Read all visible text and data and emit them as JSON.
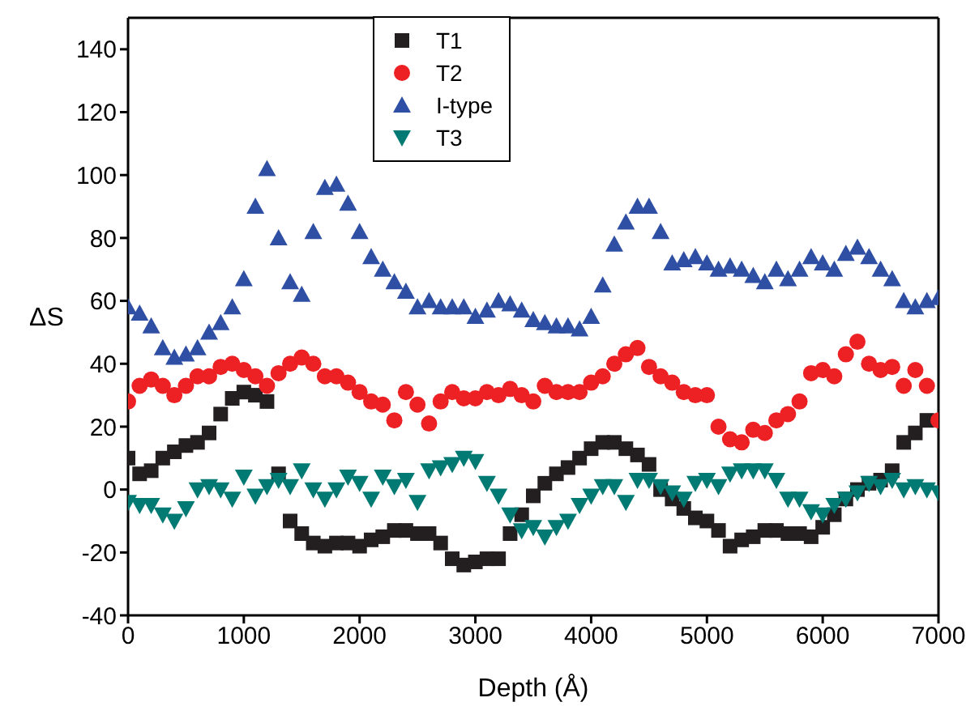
{
  "chart_data": {
    "type": "scatter",
    "xlabel": "Depth (Å)",
    "ylabel": "ΔS",
    "x": [
      0,
      100,
      200,
      300,
      400,
      500,
      600,
      700,
      800,
      900,
      1000,
      1100,
      1200,
      1300,
      1400,
      1500,
      1600,
      1700,
      1800,
      1900,
      2000,
      2100,
      2200,
      2300,
      2400,
      2500,
      2600,
      2700,
      2800,
      2900,
      3000,
      3100,
      3200,
      3300,
      3400,
      3500,
      3600,
      3700,
      3800,
      3900,
      4000,
      4100,
      4200,
      4300,
      4400,
      4500,
      4600,
      4700,
      4800,
      4900,
      5000,
      5100,
      5200,
      5300,
      5400,
      5500,
      5600,
      5700,
      5800,
      5900,
      6000,
      6100,
      6200,
      6300,
      6400,
      6500,
      6600,
      6700,
      6800,
      6900,
      7000
    ],
    "series": [
      {
        "name": "T1",
        "color": "#231f20",
        "marker": "square",
        "values": [
          10,
          5,
          6,
          10,
          12,
          14,
          15,
          18,
          24,
          29,
          31,
          30,
          28,
          5,
          -10,
          -14,
          -17,
          -18,
          -17,
          -17,
          -18,
          -16,
          -15,
          -13,
          -13,
          -14,
          -14,
          -17,
          -22,
          -24,
          -23,
          -22,
          -22,
          -14,
          -8,
          -2,
          2,
          5,
          7,
          10,
          13,
          15,
          15,
          13,
          11,
          8,
          0,
          -3,
          -6,
          -9,
          -10,
          -13,
          -18,
          -16,
          -15,
          -13,
          -13,
          -14,
          -14,
          -15,
          -12,
          -8,
          -3,
          0,
          2,
          3,
          6,
          15,
          18,
          22,
          null
        ]
      },
      {
        "name": "T2",
        "color": "#ed2024",
        "marker": "circle",
        "values": [
          28,
          33,
          35,
          33,
          30,
          33,
          36,
          36,
          39,
          40,
          38,
          36,
          33,
          37,
          40,
          42,
          40,
          36,
          36,
          34,
          31,
          28,
          27,
          22,
          31,
          27,
          21,
          28,
          31,
          29,
          29,
          31,
          30,
          32,
          30,
          28,
          33,
          31,
          31,
          31,
          34,
          36,
          40,
          43,
          45,
          39,
          36,
          34,
          31,
          30,
          30,
          20,
          16,
          15,
          19,
          18,
          22,
          24,
          28,
          37,
          38,
          36,
          43,
          47,
          40,
          38,
          39,
          33,
          38,
          33,
          22
        ]
      },
      {
        "name": "I-type",
        "color": "#2e4fa3",
        "marker": "triangle",
        "values": [
          58,
          56,
          52,
          45,
          42,
          43,
          45,
          50,
          53,
          58,
          67,
          90,
          102,
          80,
          66,
          62,
          82,
          96,
          97,
          91,
          82,
          74,
          70,
          66,
          63,
          58,
          60,
          58,
          58,
          58,
          55,
          57,
          60,
          59,
          57,
          54,
          53,
          52,
          52,
          51,
          55,
          65,
          78,
          85,
          90,
          90,
          82,
          72,
          73,
          74,
          72,
          70,
          71,
          70,
          68,
          66,
          70,
          67,
          70,
          74,
          72,
          70,
          75,
          77,
          74,
          70,
          67,
          60,
          58,
          60,
          61
        ]
      },
      {
        "name": "T3",
        "color": "#007a72",
        "marker": "triangle-down",
        "values": [
          -4,
          -5,
          -5,
          -8,
          -10,
          -6,
          0,
          1,
          0,
          -3,
          4,
          -2,
          1,
          3,
          1,
          6,
          0,
          -3,
          0,
          4,
          2,
          -3,
          4,
          1,
          3,
          -4,
          6,
          7,
          8,
          10,
          9,
          2,
          -2,
          -8,
          -13,
          -12,
          -15,
          -12,
          -10,
          -5,
          -2,
          1,
          1,
          -4,
          3,
          3,
          1,
          -1,
          -3,
          2,
          3,
          1,
          5,
          6,
          6,
          6,
          3,
          -3,
          -3,
          -7,
          -8,
          -5,
          -3,
          -1,
          2,
          1,
          3,
          0,
          1,
          0,
          -1
        ]
      }
    ],
    "xlim": [
      0,
      7000
    ],
    "xticks": [
      0,
      1000,
      2000,
      3000,
      4000,
      5000,
      6000,
      7000
    ],
    "ylim": [
      -40,
      150
    ],
    "yticks": [
      -40,
      -20,
      0,
      20,
      40,
      60,
      80,
      100,
      120,
      140
    ],
    "legend": "top"
  }
}
